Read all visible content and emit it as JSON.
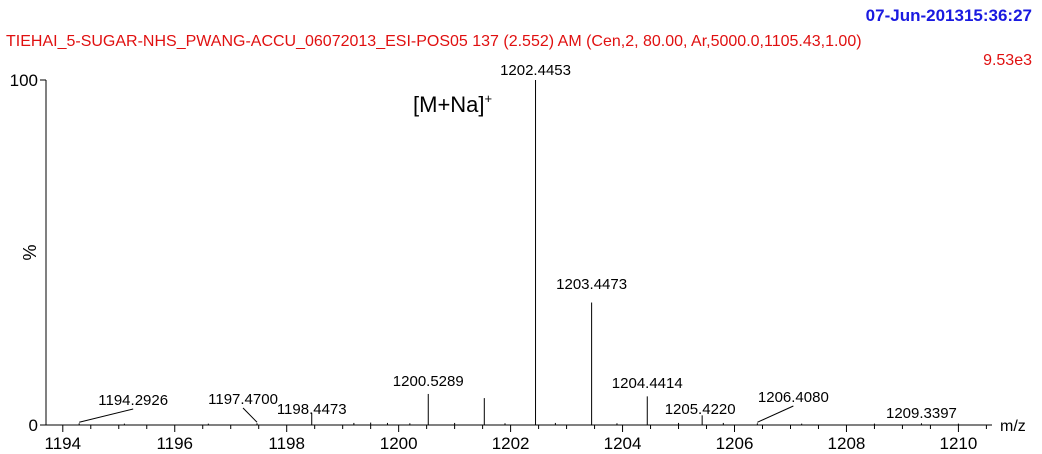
{
  "header": {
    "date_time": "07-Jun-201315:36:27",
    "run_info": "TIEHAI_5-SUGAR-NHS_PWANG-ACCU_06072013_ESI-POS05 137 (2.552) AM (Cen,2, 80.00, Ar,5000.0,1105.43,1.00)",
    "max_intensity": "9.53e3"
  },
  "annotation": {
    "ion_label": "[M+Na]",
    "ion_charge": "+"
  },
  "chart_data": {
    "type": "bar",
    "title": "",
    "xlabel": "m/z",
    "ylabel": "%",
    "xlim": [
      1193.7,
      1210.6
    ],
    "ylim": [
      0,
      100
    ],
    "x_ticks": [
      1194,
      1196,
      1198,
      1200,
      1202,
      1204,
      1206,
      1208,
      1210
    ],
    "y_ticks": [
      0,
      100
    ],
    "peaks": [
      {
        "mz": 1194.2926,
        "intensity": 0.5,
        "label": "1194.2926"
      },
      {
        "mz": 1197.47,
        "intensity": 0.5,
        "label": "1197.4700"
      },
      {
        "mz": 1198.4473,
        "intensity": 3.5,
        "label": "1198.4473"
      },
      {
        "mz": 1200.5289,
        "intensity": 9.0,
        "label": "1200.5289"
      },
      {
        "mz": 1201.53,
        "intensity": 7.8,
        "label": ""
      },
      {
        "mz": 1202.4453,
        "intensity": 100.0,
        "label": "1202.4453"
      },
      {
        "mz": 1203.4473,
        "intensity": 35.5,
        "label": "1203.4473"
      },
      {
        "mz": 1204.4414,
        "intensity": 8.3,
        "label": "1204.4414"
      },
      {
        "mz": 1205.422,
        "intensity": 2.8,
        "label": "1205.4220"
      },
      {
        "mz": 1206.408,
        "intensity": 0.5,
        "label": "1206.4080"
      },
      {
        "mz": 1209.3397,
        "intensity": 0.5,
        "label": "1209.3397"
      },
      {
        "mz": 1195.1,
        "intensity": 0.4,
        "label": ""
      },
      {
        "mz": 1196.6,
        "intensity": 0.4,
        "label": ""
      },
      {
        "mz": 1199.2,
        "intensity": 0.6,
        "label": ""
      },
      {
        "mz": 1199.5,
        "intensity": 0.7,
        "label": ""
      },
      {
        "mz": 1199.8,
        "intensity": 0.6,
        "label": ""
      },
      {
        "mz": 1200.2,
        "intensity": 0.5,
        "label": ""
      },
      {
        "mz": 1201.0,
        "intensity": 0.6,
        "label": ""
      },
      {
        "mz": 1201.9,
        "intensity": 0.5,
        "label": ""
      },
      {
        "mz": 1202.8,
        "intensity": 0.6,
        "label": ""
      },
      {
        "mz": 1203.9,
        "intensity": 0.5,
        "label": ""
      },
      {
        "mz": 1205.0,
        "intensity": 0.6,
        "label": ""
      },
      {
        "mz": 1205.8,
        "intensity": 0.6,
        "label": ""
      },
      {
        "mz": 1207.2,
        "intensity": 0.4,
        "label": ""
      },
      {
        "mz": 1208.5,
        "intensity": 0.4,
        "label": ""
      },
      {
        "mz": 1210.0,
        "intensity": 0.4,
        "label": ""
      }
    ]
  }
}
